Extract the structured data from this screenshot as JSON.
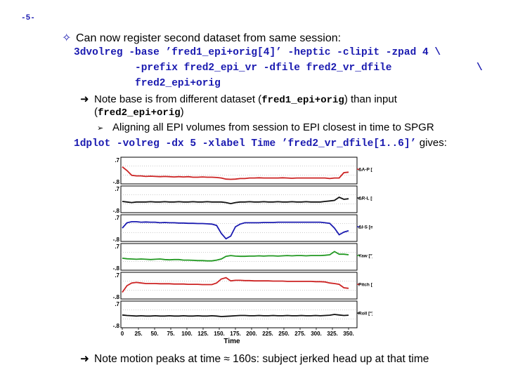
{
  "page_number": "-5-",
  "bullet1": {
    "icon": "diamond-outline-icon",
    "text": "Can now register second dataset from same session:"
  },
  "code1": {
    "line1": "3dvolreg -base ’fred1_epi+orig[4]’ -heptic -clipit -zpad 4 \\",
    "line2": "-prefix fred2_epi_vr -dfile fred2_vr_dfile",
    "line2_cont": "\\",
    "line3": "fred2_epi+orig"
  },
  "bullet2": {
    "icon": "arrow-right-icon",
    "text_a": "Note base is from different dataset (",
    "code_a": "fred1_epi+orig",
    "text_b": ") than input",
    "text_c": "(",
    "code_b": "fred2_epi+orig",
    "text_d": ")"
  },
  "bullet3": {
    "icon": "small-arrow-icon",
    "text": "Aligning all EPI volumes from session to EPI closest in time to SPGR"
  },
  "code2": {
    "text": "1dplot -volreg -dx 5 -xlabel Time ’fred2_vr_dfile[1..6]’",
    "suffix": "gives:"
  },
  "chart_data": {
    "type": "line",
    "xlabel": "Time",
    "x_ticks": [
      "0",
      "25.",
      "50.",
      "75.",
      "100.",
      "125.",
      "150.",
      "175.",
      "200.",
      "225.",
      "250.",
      "275.",
      "300.",
      "325.",
      "350."
    ],
    "x_range": [
      0,
      350
    ],
    "panel_ticks": [
      ".7",
      "-.8"
    ],
    "series": [
      {
        "name": "ΔA-P [mm]",
        "color": "#cc2222",
        "values": [
          0.64,
          0.5,
          0.32,
          0.3,
          0.3,
          0.28,
          0.29,
          0.28,
          0.27,
          0.28,
          0.27,
          0.26,
          0.27,
          0.26,
          0.27,
          0.25,
          0.25,
          0.26,
          0.25,
          0.25,
          0.24,
          0.22,
          0.18,
          0.17,
          0.18,
          0.2,
          0.2,
          0.22,
          0.22,
          0.23,
          0.22,
          0.22,
          0.22,
          0.22,
          0.23,
          0.22,
          0.21,
          0.22,
          0.22,
          0.22,
          0.22,
          0.22,
          0.22,
          0.22,
          0.2,
          0.22,
          0.22,
          0.42,
          0.44
        ]
      },
      {
        "name": "ΔR-L [mm]",
        "color": "#111111",
        "values": [
          0.42,
          0.4,
          0.38,
          0.4,
          0.4,
          0.4,
          0.41,
          0.4,
          0.4,
          0.41,
          0.4,
          0.4,
          0.41,
          0.4,
          0.4,
          0.41,
          0.4,
          0.4,
          0.41,
          0.4,
          0.4,
          0.4,
          0.38,
          0.34,
          0.38,
          0.4,
          0.4,
          0.41,
          0.4,
          0.4,
          0.41,
          0.4,
          0.4,
          0.41,
          0.4,
          0.4,
          0.41,
          0.4,
          0.4,
          0.41,
          0.4,
          0.4,
          0.4,
          0.42,
          0.44,
          0.46,
          0.58,
          0.5,
          0.52
        ]
      },
      {
        "name": "ΔI-S [mm]",
        "color": "#1a1ab0",
        "values": [
          0.5,
          0.7,
          0.74,
          0.74,
          0.72,
          0.73,
          0.72,
          0.72,
          0.7,
          0.71,
          0.7,
          0.7,
          0.69,
          0.69,
          0.68,
          0.68,
          0.67,
          0.67,
          0.66,
          0.65,
          0.6,
          0.3,
          0.1,
          0.2,
          0.55,
          0.65,
          0.7,
          0.7,
          0.7,
          0.7,
          0.71,
          0.71,
          0.71,
          0.72,
          0.72,
          0.72,
          0.72,
          0.72,
          0.72,
          0.72,
          0.72,
          0.72,
          0.72,
          0.7,
          0.68,
          0.5,
          0.25,
          0.35,
          0.4
        ]
      },
      {
        "name": "Yaw [°]",
        "color": "#229922",
        "values": [
          0.45,
          0.43,
          0.42,
          0.41,
          0.42,
          0.41,
          0.4,
          0.41,
          0.42,
          0.4,
          0.39,
          0.4,
          0.4,
          0.38,
          0.38,
          0.37,
          0.36,
          0.36,
          0.35,
          0.35,
          0.38,
          0.42,
          0.52,
          0.55,
          0.53,
          0.52,
          0.52,
          0.53,
          0.53,
          0.54,
          0.53,
          0.54,
          0.54,
          0.53,
          0.54,
          0.55,
          0.54,
          0.55,
          0.55,
          0.54,
          0.55,
          0.55,
          0.55,
          0.56,
          0.58,
          0.7,
          0.6,
          0.6,
          0.58
        ]
      },
      {
        "name": "Pitch [°]",
        "color": "#cc2222",
        "values": [
          0.25,
          0.5,
          0.6,
          0.62,
          0.6,
          0.58,
          0.58,
          0.58,
          0.57,
          0.57,
          0.57,
          0.56,
          0.56,
          0.56,
          0.55,
          0.55,
          0.55,
          0.54,
          0.54,
          0.54,
          0.6,
          0.75,
          0.8,
          0.68,
          0.7,
          0.7,
          0.69,
          0.69,
          0.68,
          0.68,
          0.68,
          0.68,
          0.67,
          0.67,
          0.67,
          0.66,
          0.66,
          0.66,
          0.66,
          0.66,
          0.66,
          0.65,
          0.65,
          0.64,
          0.6,
          0.58,
          0.55,
          0.42,
          0.4
        ]
      },
      {
        "name": "Roll [°]",
        "color": "#111111",
        "values": [
          0.48,
          0.46,
          0.45,
          0.44,
          0.45,
          0.44,
          0.44,
          0.45,
          0.44,
          0.44,
          0.45,
          0.44,
          0.44,
          0.45,
          0.44,
          0.44,
          0.45,
          0.44,
          0.44,
          0.45,
          0.44,
          0.42,
          0.43,
          0.44,
          0.45,
          0.46,
          0.46,
          0.45,
          0.45,
          0.46,
          0.45,
          0.45,
          0.46,
          0.45,
          0.45,
          0.46,
          0.45,
          0.45,
          0.46,
          0.45,
          0.45,
          0.46,
          0.45,
          0.46,
          0.47,
          0.5,
          0.48,
          0.46,
          0.47
        ]
      }
    ]
  },
  "bullet4": {
    "icon": "arrow-right-icon",
    "text": "Note motion peaks at time ≈ 160s: subject jerked head up at that time"
  }
}
